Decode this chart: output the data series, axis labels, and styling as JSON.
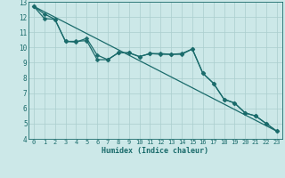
{
  "xlabel": "Humidex (Indice chaleur)",
  "bg_color": "#cce8e8",
  "grid_color_major": "#aacece",
  "grid_color_minor": "#bbdcdc",
  "line_color": "#1a6b6b",
  "xlim": [
    -0.5,
    23.5
  ],
  "ylim": [
    4,
    13
  ],
  "xticks": [
    0,
    1,
    2,
    3,
    4,
    5,
    6,
    7,
    8,
    9,
    10,
    11,
    12,
    13,
    14,
    15,
    16,
    17,
    18,
    19,
    20,
    21,
    22,
    23
  ],
  "yticks": [
    4,
    5,
    6,
    7,
    8,
    9,
    10,
    11,
    12,
    13
  ],
  "line1_x": [
    0,
    1,
    2,
    3,
    4,
    5,
    6,
    7,
    8,
    9,
    10,
    11,
    12,
    13,
    14,
    15,
    16,
    17,
    18,
    19,
    20,
    21,
    22,
    23
  ],
  "line1_y": [
    12.7,
    11.9,
    11.85,
    10.4,
    10.35,
    10.6,
    9.5,
    9.2,
    9.65,
    9.65,
    9.4,
    9.6,
    9.6,
    9.55,
    9.6,
    9.9,
    8.3,
    7.65,
    6.6,
    6.35,
    5.7,
    5.5,
    5.0,
    4.5
  ],
  "line2_x": [
    0,
    1,
    2,
    3,
    4,
    5,
    6,
    7,
    8,
    9,
    10,
    11,
    12,
    13,
    14,
    15,
    16,
    17,
    18,
    19,
    20,
    21,
    22,
    23
  ],
  "line2_y": [
    12.7,
    12.2,
    11.85,
    10.4,
    10.4,
    10.45,
    9.2,
    9.2,
    9.65,
    9.65,
    9.4,
    9.6,
    9.55,
    9.55,
    9.55,
    9.9,
    8.3,
    7.65,
    6.6,
    6.35,
    5.7,
    5.5,
    5.0,
    4.5
  ],
  "line3_x": [
    0,
    23
  ],
  "line3_y": [
    12.7,
    4.5
  ],
  "marker_size": 2.5,
  "line_width": 0.9,
  "tick_fontsize": 5.0,
  "xlabel_fontsize": 6.0
}
